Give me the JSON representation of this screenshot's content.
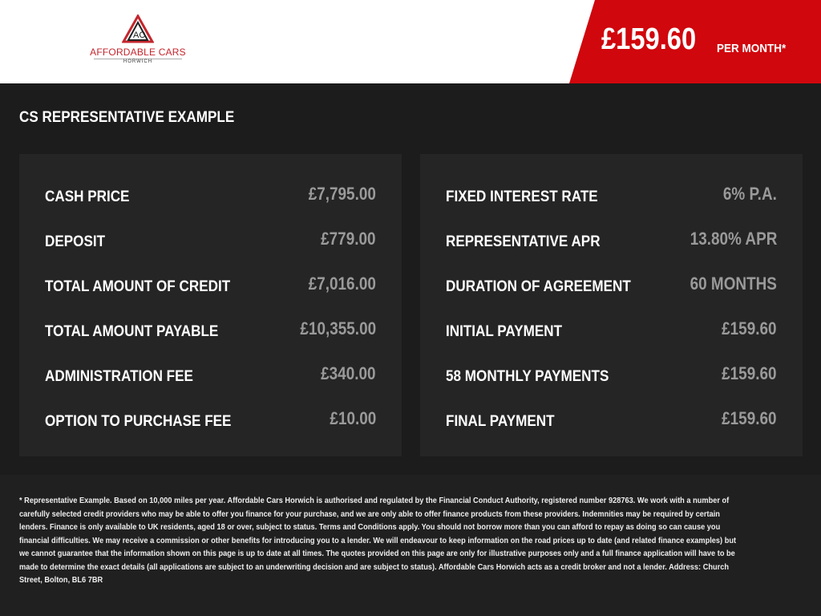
{
  "brand": {
    "name": "AFFORDABLE CARS",
    "location": "HORWICH",
    "accent": "#d0070d"
  },
  "header": {
    "price": "£159.60",
    "per_month": "PER MONTH*"
  },
  "title": "CS REPRESENTATIVE EXAMPLE",
  "left_panel": [
    {
      "label": "CASH PRICE",
      "value": "£7,795.00"
    },
    {
      "label": "DEPOSIT",
      "value": "£779.00"
    },
    {
      "label": "TOTAL AMOUNT OF CREDIT",
      "value": "£7,016.00"
    },
    {
      "label": "TOTAL AMOUNT PAYABLE",
      "value": "£10,355.00"
    },
    {
      "label": "ADMINISTRATION FEE",
      "value": "£340.00"
    },
    {
      "label": "OPTION TO PURCHASE FEE",
      "value": "£10.00"
    }
  ],
  "right_panel": [
    {
      "label": "FIXED INTEREST RATE",
      "value": "6% P.A."
    },
    {
      "label": "REPRESENTATIVE APR",
      "value": "13.80% APR"
    },
    {
      "label": "DURATION OF AGREEMENT",
      "value": "60 MONTHS"
    },
    {
      "label": "INITIAL PAYMENT",
      "value": "£159.60"
    },
    {
      "label": "58 MONTHLY PAYMENTS",
      "value": "£159.60"
    },
    {
      "label": "FINAL PAYMENT",
      "value": "£159.60"
    }
  ],
  "disclaimer": "* Representative Example. Based on 10,000 miles per year. Affordable Cars Horwich is authorised and regulated by the Financial Conduct Authority, registered number 928763. We work with a number of carefully selected credit providers who may be able to offer you finance for your purchase, and we are only able to offer finance products from these providers. Indemnities may be required by certain lenders. Finance is only available to UK residents, aged 18 or over, subject to status. Terms and Conditions apply. You should not borrow more than you can afford to repay as doing so can cause you financial difficulties. We may receive a commission or other benefits for introducing you to a lender. We will endeavour to keep information on the road prices up to date (and related finance examples) but we cannot guarantee that the information shown on this page is up to date at all times. The quotes provided on this page are only for illustrative purposes only and a full finance application will have to be made to determine the exact details (all applications are subject to an underwriting decision and are subject to status). Affordable Cars Horwich acts as a credit broker and not a lender. Address: Church Street, Bolton, BL6 7BR"
}
